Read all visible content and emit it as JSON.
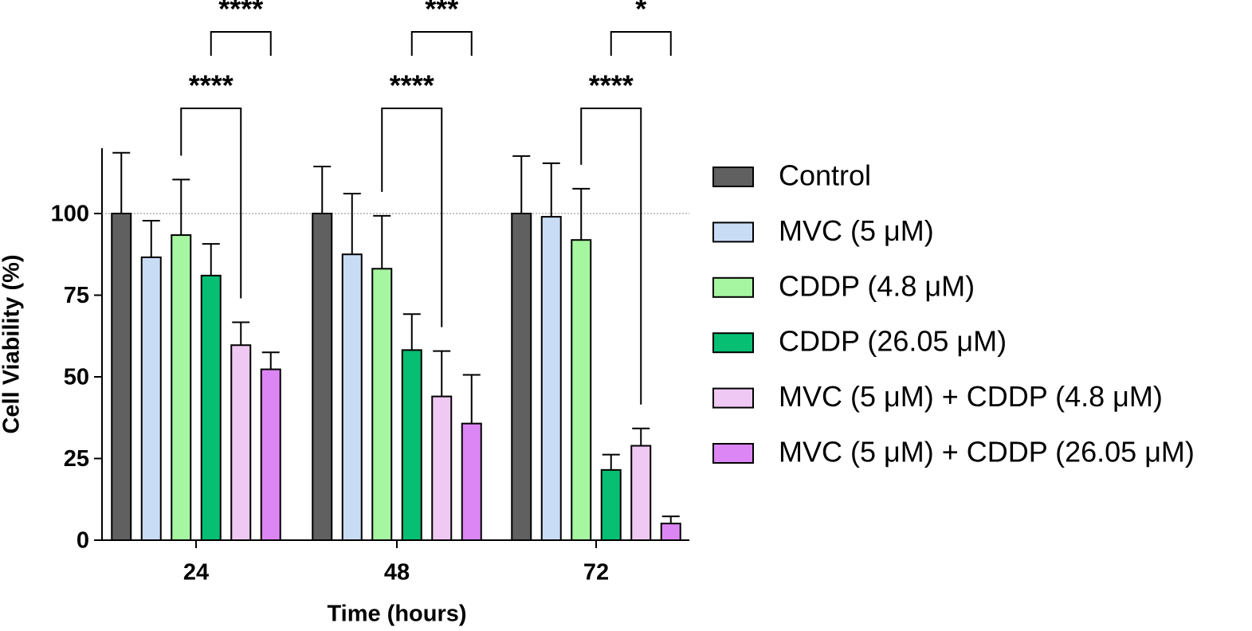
{
  "chart_data": {
    "type": "bar",
    "x_label": "Time (hours)",
    "y_label": "Cell Viability (%)",
    "categories": [
      "24",
      "48",
      "72"
    ],
    "series": [
      {
        "name": "Control",
        "color": "#606060",
        "values": [
          100,
          100,
          100
        ],
        "errors": [
          18.6,
          14.4,
          17.6
        ]
      },
      {
        "name": "MVC (5 μM)",
        "color": "#c9dcf5",
        "values": [
          86.6,
          87.5,
          99
        ],
        "errors": [
          11.2,
          18.6,
          16.4
        ]
      },
      {
        "name": "CDDP (4.8 μM)",
        "color": "#a6f5a0",
        "values": [
          93.4,
          83.1,
          91.9
        ],
        "errors": [
          17,
          16.2,
          15.7
        ]
      },
      {
        "name": "CDDP (26.05 μM)",
        "color": "#06bf73",
        "values": [
          81,
          58.2,
          21.5
        ],
        "errors": [
          9.7,
          11,
          4.7
        ]
      },
      {
        "name": "MVC (5 μM) + CDDP (4.8 μM)",
        "color": "#efc8f3",
        "values": [
          59.7,
          44,
          28.9
        ],
        "errors": [
          7,
          13.9,
          5.3
        ]
      },
      {
        "name": "MVC (5 μM) + CDDP (26.05 μM)",
        "color": "#dc86f5",
        "values": [
          52.3,
          35.7,
          5.1
        ],
        "errors": [
          5.2,
          14.9,
          2.2
        ]
      }
    ],
    "annotations": [
      [
        "****",
        "****"
      ],
      [
        "****",
        "***"
      ],
      [
        "****",
        "*"
      ]
    ],
    "reference_line": 100,
    "ylim": [
      0,
      120
    ],
    "yticks": [
      0,
      25,
      50,
      75,
      100
    ],
    "legend": "right"
  }
}
